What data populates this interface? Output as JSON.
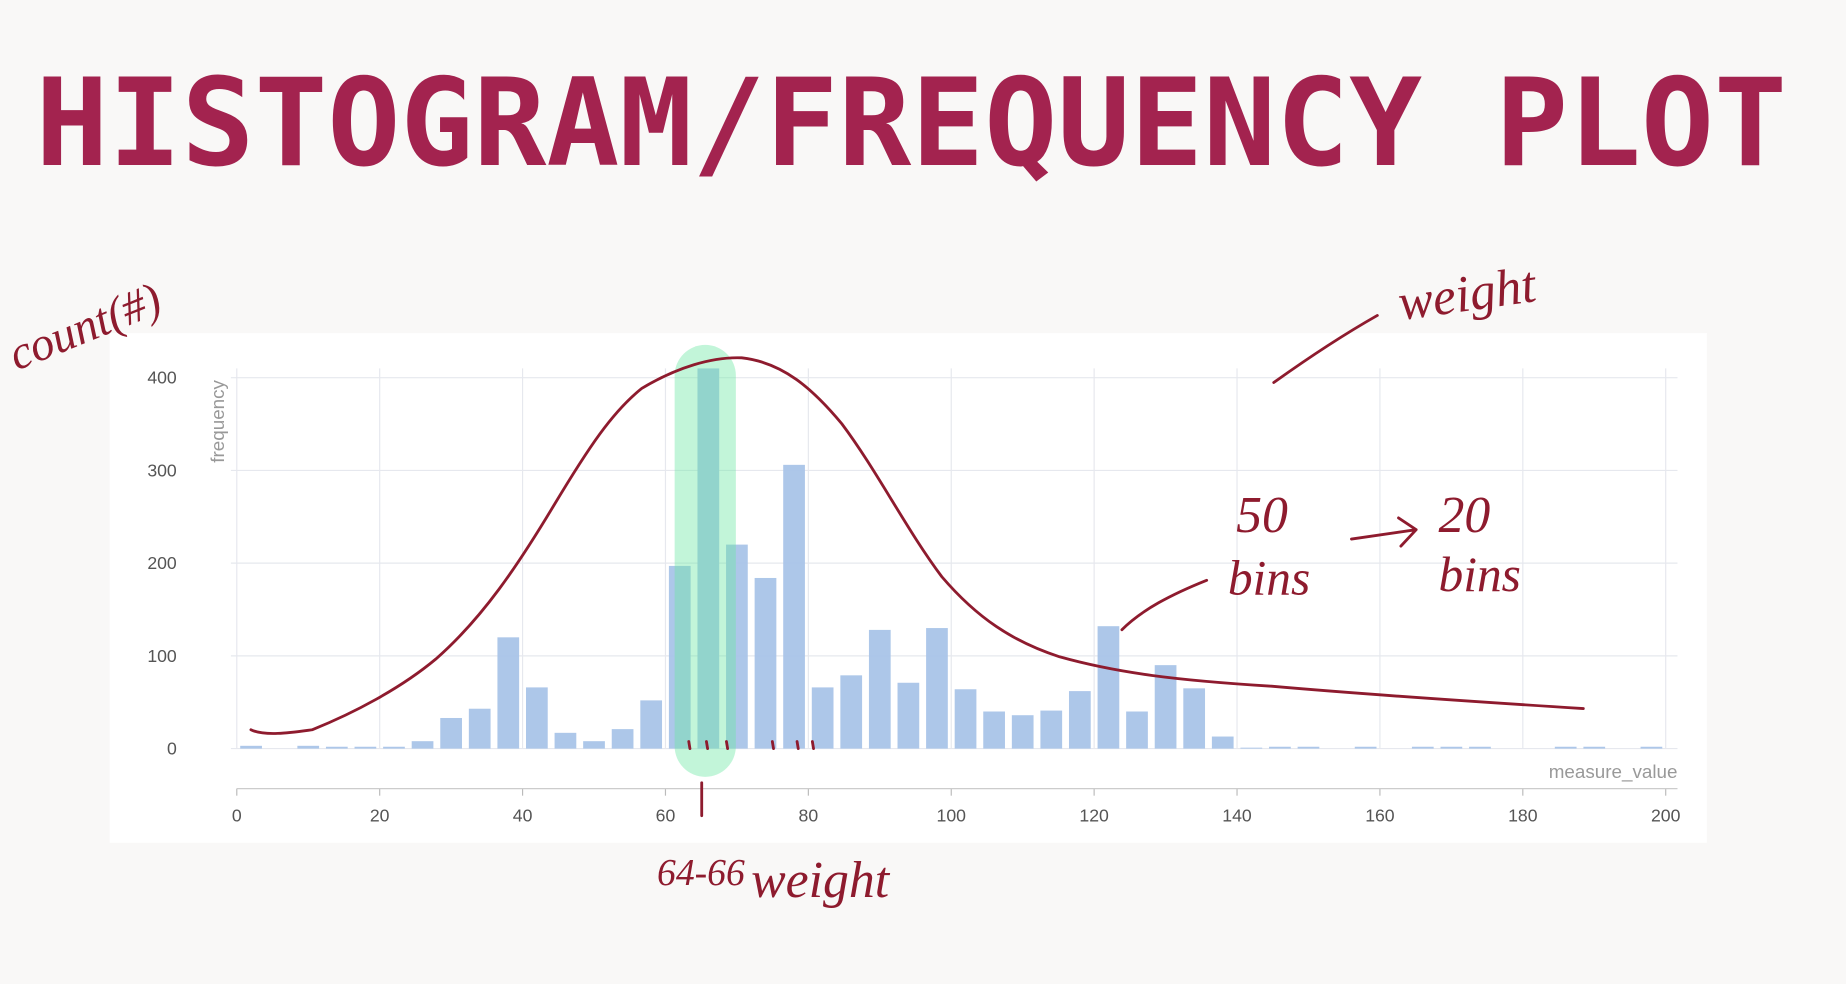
{
  "chart_data": {
    "type": "histogram",
    "title": "HISTOGRAM/FREQUENCY PLOT",
    "x_label": "measure_value",
    "y_label": "frequency",
    "bins": [
      0,
      4,
      8,
      12,
      16,
      20,
      24,
      28,
      32,
      36,
      40,
      44,
      48,
      52,
      56,
      60,
      64,
      68,
      72,
      76,
      80,
      84,
      88,
      92,
      96,
      100,
      104,
      108,
      112,
      116,
      120,
      124,
      128,
      132,
      136,
      140,
      144,
      148,
      152,
      156,
      160,
      164,
      168,
      172,
      176,
      180,
      184,
      188,
      192,
      196,
      200
    ],
    "counts": [
      3,
      0,
      3,
      2,
      2,
      2,
      8,
      33,
      43,
      120,
      66,
      17,
      8,
      21,
      52,
      197,
      410,
      220,
      184,
      306,
      66,
      79,
      128,
      71,
      130,
      64,
      40,
      36,
      41,
      62,
      132,
      40,
      90,
      65,
      13,
      1,
      2,
      2,
      0,
      2,
      0,
      2,
      2,
      2,
      0,
      0,
      2,
      2,
      0,
      2
    ],
    "color": "#a9c4e8",
    "xlim": [
      0,
      200
    ],
    "xticks": [
      0,
      20,
      40,
      60,
      80,
      100,
      120,
      140,
      160,
      180,
      200
    ],
    "ylim": [
      0,
      410
    ],
    "yticks": [
      0,
      100,
      200,
      300,
      400
    ],
    "grid": true,
    "annotations": [
      "count(#)",
      "weight",
      "50",
      "bins",
      "20",
      "bins",
      "64-66",
      "weight"
    ]
  }
}
